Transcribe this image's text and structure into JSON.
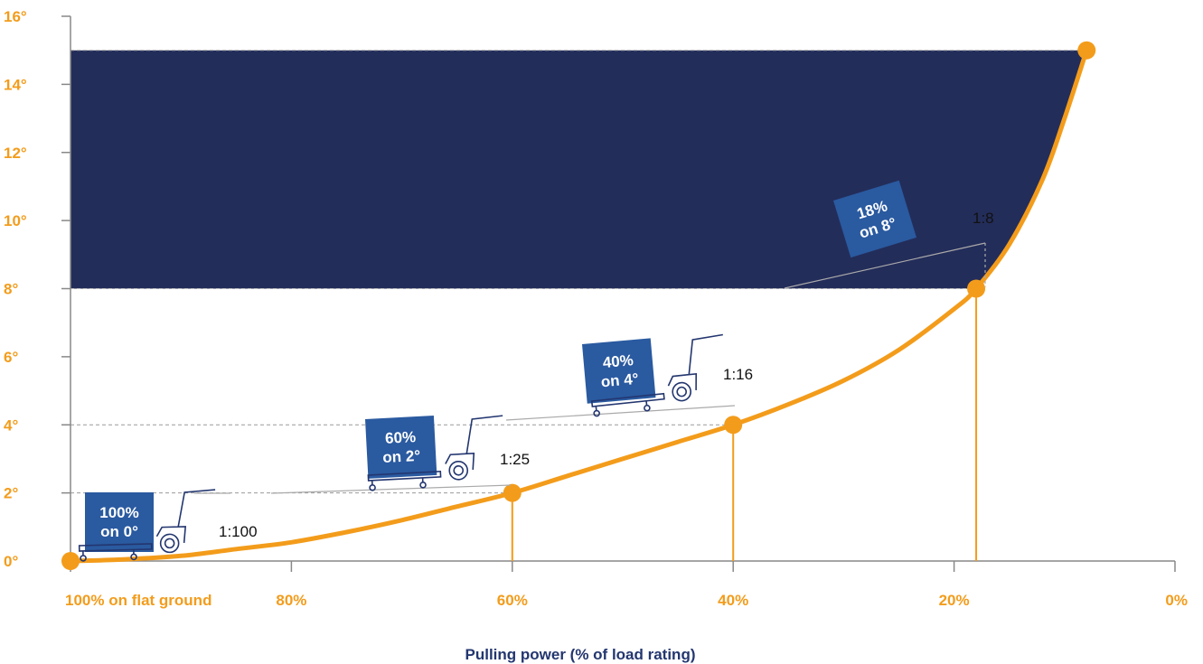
{
  "chart_data": {
    "type": "line",
    "xlabel": "Pulling power (% of load rating)",
    "x_ticks": [
      "100% on flat ground",
      "80%",
      "60%",
      "40%",
      "20%",
      "0%"
    ],
    "x_tick_values": [
      100,
      80,
      60,
      40,
      20,
      0
    ],
    "y_ticks": [
      "0°",
      "2°",
      "4°",
      "6°",
      "8°",
      "10°",
      "12°",
      "14°",
      "16°"
    ],
    "y_tick_values": [
      0,
      2,
      4,
      6,
      8,
      10,
      12,
      14,
      16
    ],
    "xlim": [
      100,
      0
    ],
    "ylim": [
      0,
      16
    ],
    "curve": {
      "x": [
        100,
        95,
        90,
        85,
        80,
        75,
        70,
        65,
        60,
        55,
        50,
        45,
        40,
        35,
        30,
        25,
        20,
        18,
        15,
        12,
        10,
        8
      ],
      "y": [
        0,
        0.05,
        0.15,
        0.35,
        0.55,
        0.85,
        1.2,
        1.6,
        2,
        2.5,
        3,
        3.5,
        4,
        4.6,
        5.3,
        6.2,
        7.4,
        8,
        9.3,
        11.2,
        13.0,
        15
      ]
    },
    "points": [
      {
        "x": 100,
        "y": 0,
        "badge": [
          "100%",
          "on 0°"
        ],
        "ratio": "1:100"
      },
      {
        "x": 60,
        "y": 2,
        "badge": [
          "60%",
          "on 2°"
        ],
        "ratio": "1:25"
      },
      {
        "x": 40,
        "y": 4,
        "badge": [
          "40%",
          "on 4°"
        ],
        "ratio": "1:16"
      },
      {
        "x": 18,
        "y": 8,
        "badge": [
          "18%",
          "on 8°"
        ],
        "ratio": "1:8"
      }
    ],
    "end_point": {
      "x": 8,
      "y": 15
    },
    "shaded_band": {
      "x_from": 100,
      "y_from": 8,
      "y_to": 15
    },
    "colors": {
      "curve": "#f39c1b",
      "axis_labels": "#f39c1b",
      "xlabel": "#23366f",
      "band": "#232d5a",
      "badge": "#2a5aa0",
      "axis": "#888888",
      "guide": "#9a9a9a"
    },
    "icons": [
      "tug-trolley-icon"
    ]
  }
}
